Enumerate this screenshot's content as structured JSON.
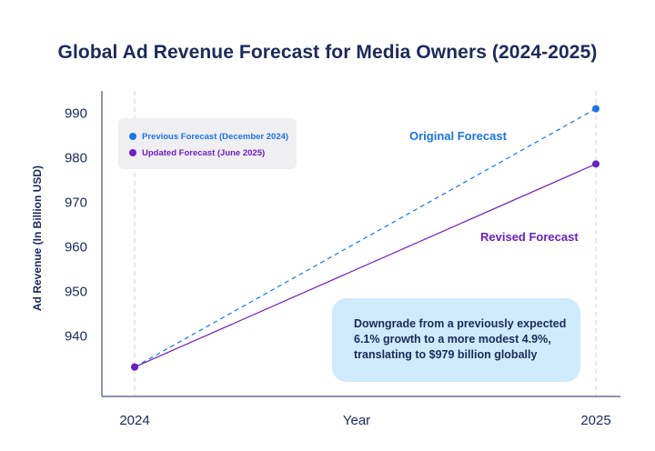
{
  "chart_data": {
    "type": "line",
    "title": "Global Ad Revenue Forecast for Media Owners (2024-2025)",
    "xlabel": "Year",
    "ylabel": "Ad Revenue (In Billion USD)",
    "categories": [
      "2024",
      "2025"
    ],
    "yticks": [
      940,
      950,
      960,
      970,
      980,
      990
    ],
    "ylim": [
      926.4,
      995
    ],
    "grid": "vertical dashed at x ticks",
    "legend_position": "top-left",
    "series": [
      {
        "name": "Previous Forecast (December 2024)",
        "values": [
          933,
          991
        ],
        "color": "#1a73e8",
        "style": "dashed"
      },
      {
        "name": "Updated Forecast (June 2025)",
        "values": [
          933,
          978.6
        ],
        "color": "#6a1fc2",
        "style": "solid"
      }
    ],
    "annotations": {
      "original": "Original Forecast",
      "revised": "Revised Forecast",
      "callout": "Downgrade from a previously expected 6.1% growth to a more modest 4.9%, translating to $979 billion globally"
    }
  }
}
